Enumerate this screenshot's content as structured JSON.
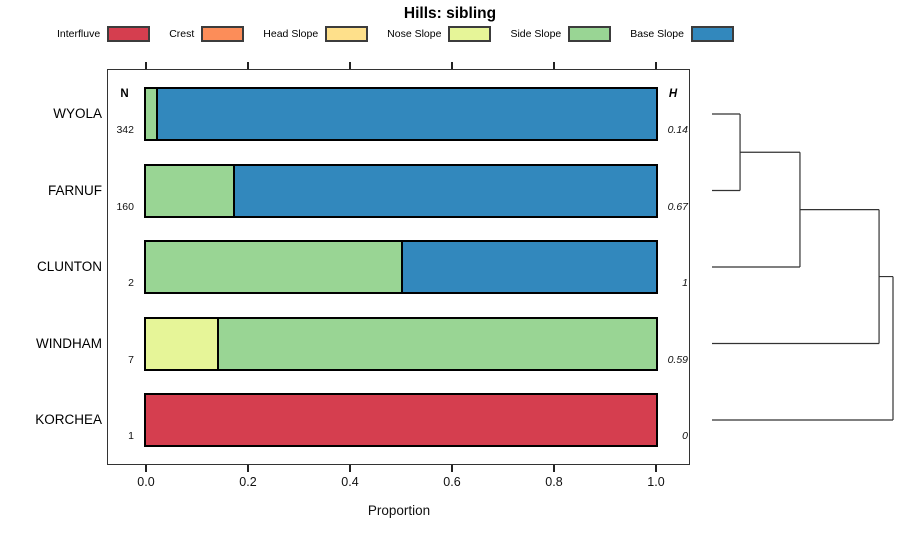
{
  "title": "Hills: sibling",
  "legend": [
    {
      "label": "Interfluve",
      "color": "#D53E4F"
    },
    {
      "label": "Crest",
      "color": "#FC8D59"
    },
    {
      "label": "Head Slope",
      "color": "#FEE08B"
    },
    {
      "label": "Nose Slope",
      "color": "#E6F598"
    },
    {
      "label": "Side Slope",
      "color": "#99D594"
    },
    {
      "label": "Base Slope",
      "color": "#3288BD"
    }
  ],
  "columns": {
    "n_header": "N",
    "h_header": "H"
  },
  "x_axis": {
    "label": "Proportion",
    "tick_labels": [
      "0.0",
      "0.2",
      "0.4",
      "0.6",
      "0.8",
      "1.0"
    ],
    "tick_values": [
      0,
      0.2,
      0.4,
      0.6,
      0.8,
      1
    ],
    "range": [
      0,
      1
    ]
  },
  "chart_data": {
    "type": "bar",
    "subtype": "stacked-horizontal-proportion-with-dendrogram",
    "title": "Hills: sibling",
    "xlabel": "Proportion",
    "xlim": [
      0,
      1
    ],
    "legend_position": "top",
    "grid": false,
    "categories": [
      "WYOLA",
      "FARNUF",
      "CLUNTON",
      "WINDHAM",
      "KORCHEA"
    ],
    "classes": [
      "Interfluve",
      "Crest",
      "Head Slope",
      "Nose Slope",
      "Side Slope",
      "Base Slope"
    ],
    "class_colors": {
      "Interfluve": "#D53E4F",
      "Crest": "#FC8D59",
      "Head Slope": "#FEE08B",
      "Nose Slope": "#E6F598",
      "Side Slope": "#99D594",
      "Base Slope": "#3288BD"
    },
    "rows": [
      {
        "name": "WYOLA",
        "n": "342",
        "h": "0.14",
        "segments": [
          {
            "class": "Side Slope",
            "value": 0.02
          },
          {
            "class": "Base Slope",
            "value": 0.98
          }
        ]
      },
      {
        "name": "FARNUF",
        "n": "160",
        "h": "0.67",
        "segments": [
          {
            "class": "Side Slope",
            "value": 0.17
          },
          {
            "class": "Base Slope",
            "value": 0.83
          }
        ]
      },
      {
        "name": "CLUNTON",
        "n": "2",
        "h": "1",
        "segments": [
          {
            "class": "Side Slope",
            "value": 0.5
          },
          {
            "class": "Base Slope",
            "value": 0.5
          }
        ]
      },
      {
        "name": "WINDHAM",
        "n": "7",
        "h": "0.59",
        "segments": [
          {
            "class": "Nose Slope",
            "value": 0.14
          },
          {
            "class": "Side Slope",
            "value": 0.86
          }
        ]
      },
      {
        "name": "KORCHEA",
        "n": "1",
        "h": "0",
        "segments": [
          {
            "class": "Interfluve",
            "value": 1
          }
        ]
      }
    ],
    "dendrogram": {
      "leaves": [
        "WYOLA",
        "FARNUF",
        "CLUNTON",
        "WINDHAM",
        "KORCHEA"
      ],
      "merges": [
        {
          "a": "L0",
          "b": "L1",
          "pos": 0.155
        },
        {
          "a": "M0",
          "b": "L2",
          "pos": 0.486
        },
        {
          "a": "M1",
          "b": "L3",
          "pos": 0.923
        },
        {
          "a": "M2",
          "b": "L4",
          "pos": 1.0
        }
      ]
    }
  }
}
